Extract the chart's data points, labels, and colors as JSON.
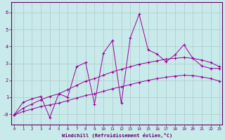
{
  "xlabel": "Windchill (Refroidissement éolien,°C)",
  "bg_color": "#c8eaea",
  "line_color": "#990099",
  "grid_color": "#b0c8c8",
  "axis_color": "#660066",
  "x_ticks": [
    0,
    1,
    2,
    3,
    4,
    5,
    6,
    7,
    8,
    9,
    10,
    11,
    12,
    13,
    14,
    15,
    16,
    17,
    18,
    19,
    20,
    21,
    22,
    23
  ],
  "y_ticks": [
    0,
    1,
    2,
    3,
    4,
    5,
    6
  ],
  "y_tick_labels": [
    "-0",
    "1",
    "2",
    "3",
    "4",
    "5",
    "6"
  ],
  "xlim": [
    -0.3,
    23.3
  ],
  "ylim": [
    -0.6,
    6.6
  ],
  "line1_x": [
    0,
    1,
    2,
    3,
    4,
    5,
    6,
    7,
    8,
    9,
    10,
    11,
    12,
    13,
    14,
    15,
    16,
    17,
    18,
    19,
    20,
    21,
    22,
    23
  ],
  "line1_y": [
    -0.05,
    0.7,
    0.9,
    1.05,
    -0.2,
    1.2,
    1.0,
    2.8,
    3.05,
    0.6,
    3.6,
    4.35,
    0.65,
    4.5,
    5.9,
    3.8,
    3.55,
    3.1,
    3.5,
    4.1,
    3.3,
    2.85,
    2.7,
    2.7
  ],
  "line2_x": [
    0,
    1,
    2,
    3,
    4,
    5,
    6,
    7,
    8,
    9,
    10,
    11,
    12,
    13,
    14,
    15,
    16,
    17,
    18,
    19,
    20,
    21,
    22,
    23
  ],
  "line2_y": [
    -0.05,
    0.35,
    0.6,
    0.85,
    1.05,
    1.2,
    1.45,
    1.7,
    1.95,
    2.1,
    2.3,
    2.5,
    2.65,
    2.8,
    2.95,
    3.05,
    3.15,
    3.25,
    3.3,
    3.35,
    3.3,
    3.2,
    3.05,
    2.8
  ],
  "line3_x": [
    0,
    1,
    2,
    3,
    4,
    5,
    6,
    7,
    8,
    9,
    10,
    11,
    12,
    13,
    14,
    15,
    16,
    17,
    18,
    19,
    20,
    21,
    22,
    23
  ],
  "line3_y": [
    -0.05,
    0.15,
    0.3,
    0.45,
    0.55,
    0.65,
    0.8,
    0.95,
    1.1,
    1.2,
    1.35,
    1.5,
    1.62,
    1.75,
    1.88,
    2.0,
    2.1,
    2.18,
    2.25,
    2.3,
    2.28,
    2.2,
    2.1,
    1.95
  ]
}
